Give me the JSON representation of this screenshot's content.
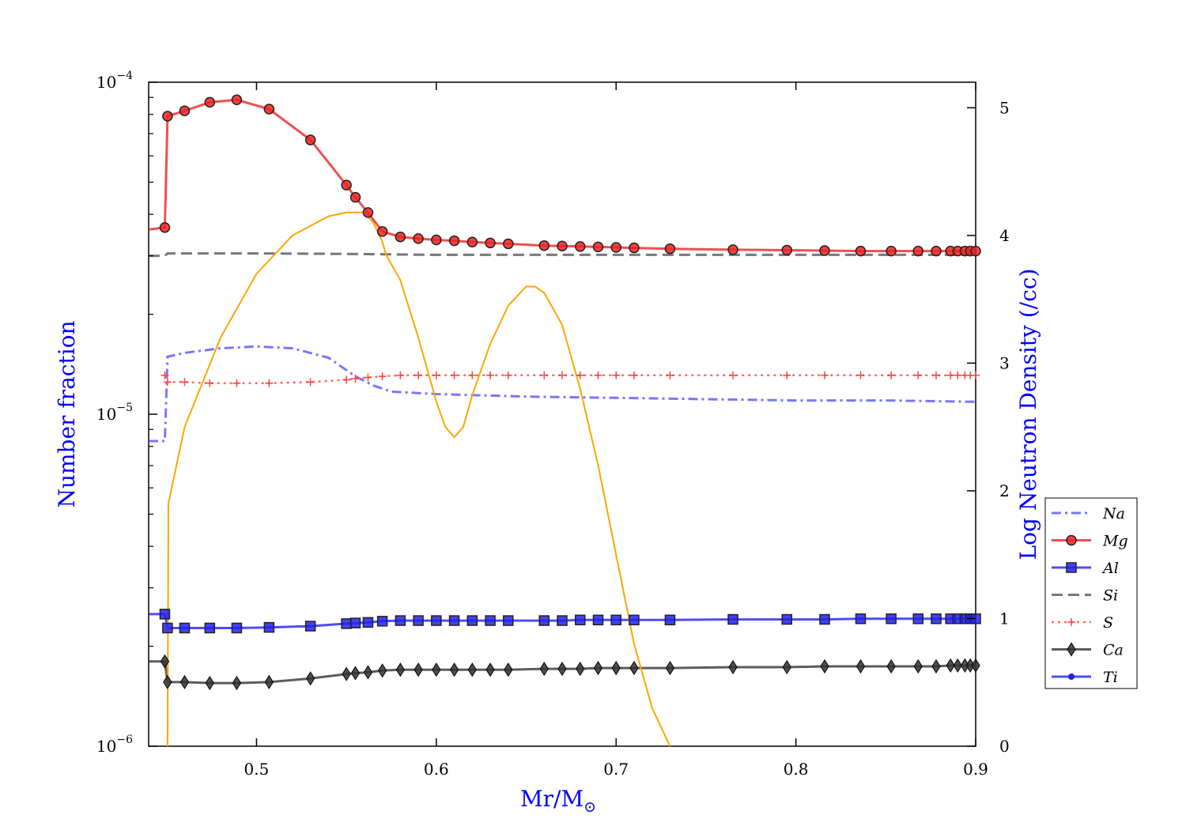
{
  "chart_data": {
    "type": "line",
    "xlabel": "Mr/M",
    "xlabel_sub": "⊙",
    "ylabel": "Number fraction",
    "y2label": "Log Neutron Density (/cc)",
    "xlim": [
      0.44,
      0.9
    ],
    "ylim": [
      1e-06,
      0.0001
    ],
    "yscale": "log",
    "y2lim": [
      0,
      5.2
    ],
    "legend_position": "right",
    "grid": false,
    "x_ticks": [
      "0.5",
      "0.6",
      "0.7",
      "0.8",
      "0.9"
    ],
    "x_tick_values": [
      0.5,
      0.6,
      0.7,
      0.8,
      0.9
    ],
    "y_ticks": [
      {
        "base": "10",
        "exp": "−6",
        "value": 1e-06
      },
      {
        "base": "10",
        "exp": "−5",
        "value": 1e-05
      },
      {
        "base": "10",
        "exp": "−4",
        "value": 0.0001
      }
    ],
    "y2_ticks": [
      "0",
      "1",
      "2",
      "3",
      "4",
      "5"
    ],
    "y2_tick_values": [
      0,
      1,
      2,
      3,
      4,
      5
    ],
    "series": [
      {
        "name": "Na",
        "color": "#5555ff",
        "style": "dashdot",
        "marker": "none",
        "axis": "left",
        "x": [
          0.44,
          0.449,
          0.4505,
          0.46,
          0.48,
          0.5,
          0.52,
          0.54,
          0.555,
          0.565,
          0.575,
          0.6,
          0.65,
          0.7,
          0.75,
          0.8,
          0.85,
          0.9
        ],
        "y": [
          8.3e-06,
          8.3e-06,
          1.49e-05,
          1.53e-05,
          1.58e-05,
          1.6e-05,
          1.58e-05,
          1.48e-05,
          1.3e-05,
          1.22e-05,
          1.17e-05,
          1.15e-05,
          1.13e-05,
          1.12e-05,
          1.11e-05,
          1.1e-05,
          1.1e-05,
          1.09e-05
        ]
      },
      {
        "name": "Mg",
        "color": "#ee2222",
        "style": "solid",
        "marker": "circle",
        "axis": "left",
        "x": [
          0.44,
          0.449,
          0.4505,
          0.46,
          0.474,
          0.489,
          0.507,
          0.53,
          0.55,
          0.555,
          0.562,
          0.57,
          0.58,
          0.59,
          0.6,
          0.61,
          0.62,
          0.63,
          0.64,
          0.66,
          0.67,
          0.68,
          0.69,
          0.7,
          0.71,
          0.73,
          0.765,
          0.795,
          0.816,
          0.836,
          0.853,
          0.868,
          0.878,
          0.886,
          0.89,
          0.894,
          0.897,
          0.9
        ],
        "y": [
          3.6e-05,
          3.65e-05,
          7.9e-05,
          8.2e-05,
          8.7e-05,
          8.85e-05,
          8.3e-05,
          6.7e-05,
          4.9e-05,
          4.5e-05,
          4.05e-05,
          3.55e-05,
          3.42e-05,
          3.38e-05,
          3.35e-05,
          3.33e-05,
          3.3e-05,
          3.28e-05,
          3.26e-05,
          3.22e-05,
          3.21e-05,
          3.2e-05,
          3.19e-05,
          3.18e-05,
          3.17e-05,
          3.15e-05,
          3.13e-05,
          3.12e-05,
          3.11e-05,
          3.1e-05,
          3.1e-05,
          3.1e-05,
          3.1e-05,
          3.1e-05,
          3.1e-05,
          3.1e-05,
          3.1e-05,
          3.1e-05
        ],
        "markers_from": 1
      },
      {
        "name": "Al",
        "color": "#2222ee",
        "style": "solid",
        "marker": "square",
        "axis": "left",
        "x": [
          0.44,
          0.449,
          0.4505,
          0.46,
          0.474,
          0.489,
          0.507,
          0.53,
          0.55,
          0.555,
          0.562,
          0.57,
          0.58,
          0.59,
          0.6,
          0.61,
          0.62,
          0.63,
          0.64,
          0.66,
          0.67,
          0.68,
          0.69,
          0.7,
          0.71,
          0.73,
          0.765,
          0.795,
          0.816,
          0.836,
          0.853,
          0.868,
          0.878,
          0.886,
          0.89,
          0.894,
          0.897,
          0.9
        ],
        "y": [
          2.5e-06,
          2.5e-06,
          2.27e-06,
          2.27e-06,
          2.27e-06,
          2.27e-06,
          2.28e-06,
          2.3e-06,
          2.34e-06,
          2.35e-06,
          2.36e-06,
          2.38e-06,
          2.39e-06,
          2.39e-06,
          2.39e-06,
          2.39e-06,
          2.39e-06,
          2.39e-06,
          2.39e-06,
          2.39e-06,
          2.39e-06,
          2.4e-06,
          2.4e-06,
          2.4e-06,
          2.4e-06,
          2.4e-06,
          2.41e-06,
          2.41e-06,
          2.41e-06,
          2.42e-06,
          2.42e-06,
          2.42e-06,
          2.42e-06,
          2.42e-06,
          2.42e-06,
          2.42e-06,
          2.42e-06,
          2.42e-06
        ],
        "markers_from": 1
      },
      {
        "name": "Si",
        "color": "#555555",
        "style": "dashed",
        "marker": "none",
        "axis": "left",
        "x": [
          0.44,
          0.449,
          0.4505,
          0.5,
          0.55,
          0.6,
          0.7,
          0.8,
          0.9
        ],
        "y": [
          3e-05,
          3e-05,
          3.05e-05,
          3.05e-05,
          3.04e-05,
          3.02e-05,
          3.02e-05,
          3.02e-05,
          3.02e-05
        ]
      },
      {
        "name": "S",
        "color": "#ff4444",
        "style": "dotted",
        "marker": "plus",
        "axis": "left",
        "x": [
          0.449,
          0.4505,
          0.46,
          0.474,
          0.489,
          0.507,
          0.53,
          0.55,
          0.555,
          0.562,
          0.57,
          0.58,
          0.59,
          0.6,
          0.61,
          0.62,
          0.63,
          0.64,
          0.66,
          0.67,
          0.68,
          0.69,
          0.7,
          0.71,
          0.73,
          0.765,
          0.795,
          0.816,
          0.836,
          0.853,
          0.868,
          0.878,
          0.886,
          0.89,
          0.894,
          0.897,
          0.9
        ],
        "y": [
          1.31e-05,
          1.25e-05,
          1.25e-05,
          1.24e-05,
          1.24e-05,
          1.24e-05,
          1.25e-05,
          1.27e-05,
          1.28e-05,
          1.29e-05,
          1.3e-05,
          1.31e-05,
          1.31e-05,
          1.31e-05,
          1.31e-05,
          1.31e-05,
          1.31e-05,
          1.31e-05,
          1.31e-05,
          1.31e-05,
          1.31e-05,
          1.31e-05,
          1.31e-05,
          1.31e-05,
          1.31e-05,
          1.31e-05,
          1.31e-05,
          1.31e-05,
          1.31e-05,
          1.31e-05,
          1.31e-05,
          1.31e-05,
          1.31e-05,
          1.31e-05,
          1.31e-05,
          1.31e-05,
          1.31e-05
        ],
        "markers_from": 0
      },
      {
        "name": "Ca",
        "color": "#333333",
        "style": "solid",
        "marker": "diamond",
        "axis": "left",
        "x": [
          0.44,
          0.449,
          0.4505,
          0.46,
          0.474,
          0.489,
          0.507,
          0.53,
          0.55,
          0.555,
          0.562,
          0.57,
          0.58,
          0.59,
          0.6,
          0.61,
          0.62,
          0.63,
          0.64,
          0.66,
          0.67,
          0.68,
          0.69,
          0.7,
          0.71,
          0.73,
          0.765,
          0.795,
          0.816,
          0.836,
          0.853,
          0.868,
          0.878,
          0.886,
          0.89,
          0.894,
          0.897,
          0.9
        ],
        "y": [
          1.8e-06,
          1.8e-06,
          1.56e-06,
          1.56e-06,
          1.55e-06,
          1.55e-06,
          1.56e-06,
          1.6e-06,
          1.65e-06,
          1.66e-06,
          1.67e-06,
          1.69e-06,
          1.7e-06,
          1.7e-06,
          1.7e-06,
          1.7e-06,
          1.7e-06,
          1.7e-06,
          1.7e-06,
          1.71e-06,
          1.71e-06,
          1.71e-06,
          1.72e-06,
          1.72e-06,
          1.72e-06,
          1.72e-06,
          1.73e-06,
          1.73e-06,
          1.74e-06,
          1.74e-06,
          1.74e-06,
          1.74e-06,
          1.74e-06,
          1.75e-06,
          1.75e-06,
          1.75e-06,
          1.75e-06,
          1.75e-06
        ],
        "markers_from": 1
      },
      {
        "name": "Ti",
        "color": "#2222ee",
        "style": "solid",
        "marker": "dot",
        "axis": "left",
        "x": [],
        "y": []
      },
      {
        "name": "",
        "color": "#ffa500",
        "style": "solid",
        "marker": "none",
        "axis": "right",
        "x": [
          0.4505,
          0.451,
          0.46,
          0.48,
          0.5,
          0.52,
          0.54,
          0.55,
          0.56,
          0.565,
          0.57,
          0.572,
          0.58,
          0.59,
          0.6,
          0.605,
          0.61,
          0.615,
          0.62,
          0.63,
          0.64,
          0.65,
          0.655,
          0.66,
          0.67,
          0.68,
          0.69,
          0.7,
          0.71,
          0.72,
          0.725,
          0.73
        ],
        "y": [
          0.0,
          1.9,
          2.5,
          3.2,
          3.7,
          4.0,
          4.15,
          4.18,
          4.18,
          4.1,
          3.95,
          3.85,
          3.65,
          3.2,
          2.7,
          2.5,
          2.42,
          2.5,
          2.75,
          3.15,
          3.45,
          3.6,
          3.6,
          3.55,
          3.3,
          2.8,
          2.2,
          1.5,
          0.8,
          0.3,
          0.15,
          0.0
        ]
      }
    ]
  }
}
